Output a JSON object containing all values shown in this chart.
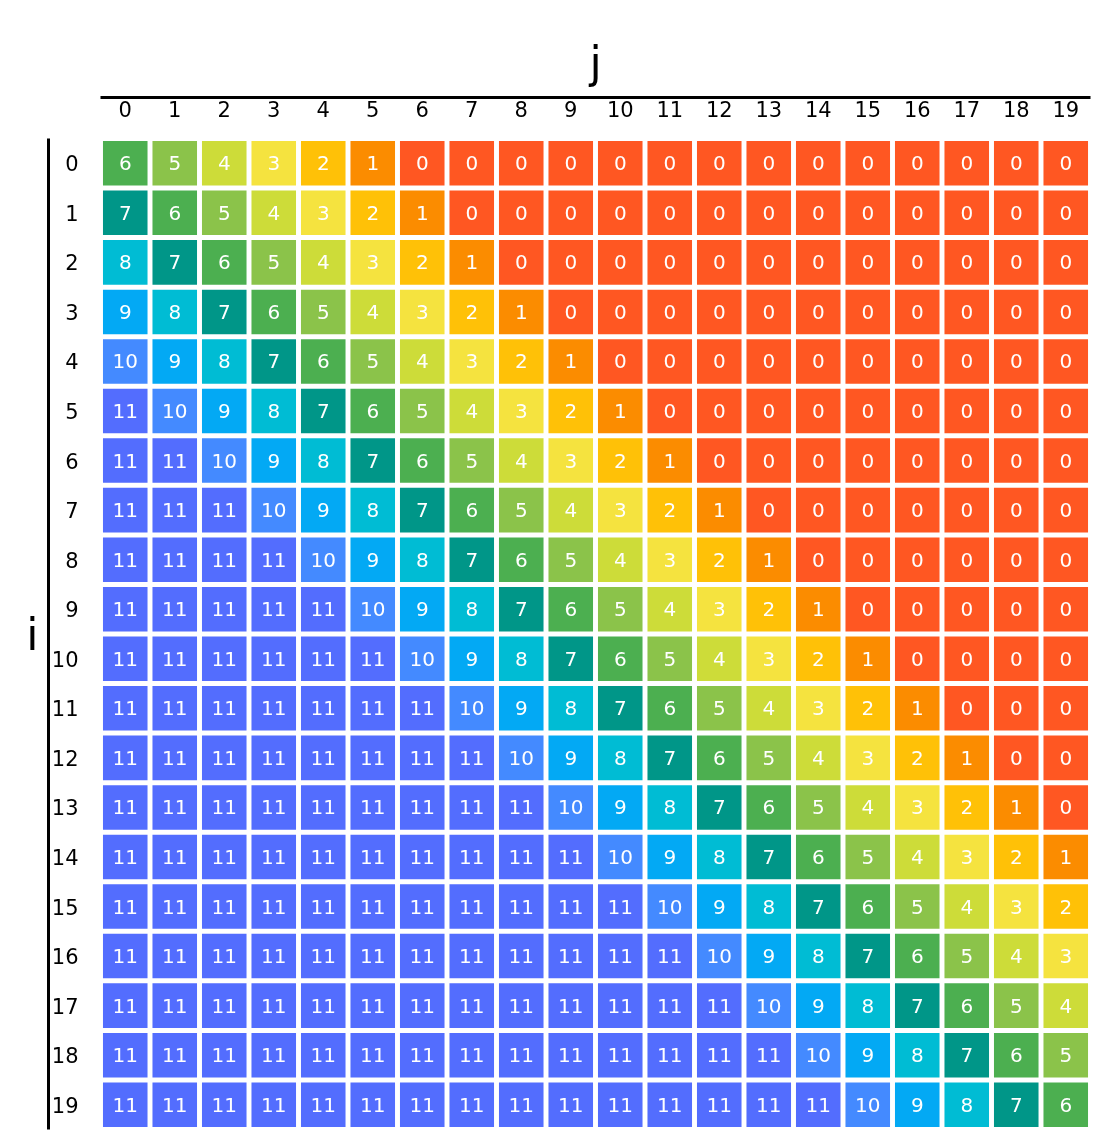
{
  "chart_data": {
    "type": "heatmap",
    "xlabel": "j",
    "ylabel": "i",
    "categories": [
      "0",
      "1",
      "2",
      "3",
      "4",
      "5",
      "6",
      "7",
      "8",
      "9",
      "10",
      "11",
      "12",
      "13",
      "14",
      "15",
      "16",
      "17",
      "18",
      "19"
    ],
    "y_categories": [
      "0",
      "1",
      "2",
      "3",
      "4",
      "5",
      "6",
      "7",
      "8",
      "9",
      "10",
      "11",
      "12",
      "13",
      "14",
      "15",
      "16",
      "17",
      "18",
      "19"
    ],
    "cells": [
      [
        6,
        5,
        4,
        3,
        2,
        1,
        0,
        0,
        0,
        0,
        0,
        0,
        0,
        0,
        0,
        0,
        0,
        0,
        0,
        0
      ],
      [
        7,
        6,
        5,
        4,
        3,
        2,
        1,
        0,
        0,
        0,
        0,
        0,
        0,
        0,
        0,
        0,
        0,
        0,
        0,
        0
      ],
      [
        8,
        7,
        6,
        5,
        4,
        3,
        2,
        1,
        0,
        0,
        0,
        0,
        0,
        0,
        0,
        0,
        0,
        0,
        0,
        0
      ],
      [
        9,
        8,
        7,
        6,
        5,
        4,
        3,
        2,
        1,
        0,
        0,
        0,
        0,
        0,
        0,
        0,
        0,
        0,
        0,
        0
      ],
      [
        10,
        9,
        8,
        7,
        6,
        5,
        4,
        3,
        2,
        1,
        0,
        0,
        0,
        0,
        0,
        0,
        0,
        0,
        0,
        0
      ],
      [
        11,
        10,
        9,
        8,
        7,
        6,
        5,
        4,
        3,
        2,
        1,
        0,
        0,
        0,
        0,
        0,
        0,
        0,
        0,
        0
      ],
      [
        11,
        11,
        10,
        9,
        8,
        7,
        6,
        5,
        4,
        3,
        2,
        1,
        0,
        0,
        0,
        0,
        0,
        0,
        0,
        0
      ],
      [
        11,
        11,
        11,
        10,
        9,
        8,
        7,
        6,
        5,
        4,
        3,
        2,
        1,
        0,
        0,
        0,
        0,
        0,
        0,
        0
      ],
      [
        11,
        11,
        11,
        11,
        10,
        9,
        8,
        7,
        6,
        5,
        4,
        3,
        2,
        1,
        0,
        0,
        0,
        0,
        0,
        0
      ],
      [
        11,
        11,
        11,
        11,
        11,
        10,
        9,
        8,
        7,
        6,
        5,
        4,
        3,
        2,
        1,
        0,
        0,
        0,
        0,
        0
      ],
      [
        11,
        11,
        11,
        11,
        11,
        11,
        10,
        9,
        8,
        7,
        6,
        5,
        4,
        3,
        2,
        1,
        0,
        0,
        0,
        0
      ],
      [
        11,
        11,
        11,
        11,
        11,
        11,
        11,
        10,
        9,
        8,
        7,
        6,
        5,
        4,
        3,
        2,
        1,
        0,
        0,
        0
      ],
      [
        11,
        11,
        11,
        11,
        11,
        11,
        11,
        11,
        10,
        9,
        8,
        7,
        6,
        5,
        4,
        3,
        2,
        1,
        0,
        0
      ],
      [
        11,
        11,
        11,
        11,
        11,
        11,
        11,
        11,
        11,
        10,
        9,
        8,
        7,
        6,
        5,
        4,
        3,
        2,
        1,
        0
      ],
      [
        11,
        11,
        11,
        11,
        11,
        11,
        11,
        11,
        11,
        11,
        10,
        9,
        8,
        7,
        6,
        5,
        4,
        3,
        2,
        1
      ],
      [
        11,
        11,
        11,
        11,
        11,
        11,
        11,
        11,
        11,
        11,
        11,
        10,
        9,
        8,
        7,
        6,
        5,
        4,
        3,
        2
      ],
      [
        11,
        11,
        11,
        11,
        11,
        11,
        11,
        11,
        11,
        11,
        11,
        11,
        10,
        9,
        8,
        7,
        6,
        5,
        4,
        3
      ],
      [
        11,
        11,
        11,
        11,
        11,
        11,
        11,
        11,
        11,
        11,
        11,
        11,
        11,
        10,
        9,
        8,
        7,
        6,
        5,
        4
      ],
      [
        11,
        11,
        11,
        11,
        11,
        11,
        11,
        11,
        11,
        11,
        11,
        11,
        11,
        11,
        10,
        9,
        8,
        7,
        6,
        5
      ],
      [
        11,
        11,
        11,
        11,
        11,
        11,
        11,
        11,
        11,
        11,
        11,
        11,
        11,
        11,
        11,
        10,
        9,
        8,
        7,
        6
      ]
    ],
    "colors": [
      "#ff5722",
      "#fb8c00",
      "#ffc107",
      "#f5e33f",
      "#cddc39",
      "#8bc34a",
      "#4caf50",
      "#009688",
      "#00bcd4",
      "#03a9f4",
      "#448aff",
      "#536dfe"
    ],
    "data_labels": true
  }
}
